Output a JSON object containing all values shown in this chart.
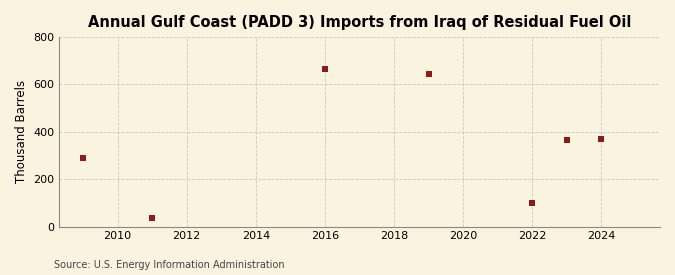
{
  "title": "Annual Gulf Coast (PADD 3) Imports from Iraq of Residual Fuel Oil",
  "ylabel": "Thousand Barrels",
  "source": "Source: U.S. Energy Information Administration",
  "x": [
    2009,
    2011,
    2016,
    2019,
    2022,
    2023,
    2024
  ],
  "y": [
    290,
    35,
    665,
    645,
    100,
    365,
    370
  ],
  "marker_color": "#8b1a1a",
  "marker": "s",
  "marker_size": 4.5,
  "xlim": [
    2008.3,
    2025.7
  ],
  "ylim": [
    0,
    800
  ],
  "yticks": [
    0,
    200,
    400,
    600,
    800
  ],
  "xticks": [
    2010,
    2012,
    2014,
    2016,
    2018,
    2020,
    2022,
    2024
  ],
  "background_color": "#faf3e0",
  "plot_bg_color": "#faf3e0",
  "grid_color": "#c8c8c8",
  "title_fontsize": 10.5,
  "label_fontsize": 8.5,
  "tick_fontsize": 8,
  "source_fontsize": 7
}
